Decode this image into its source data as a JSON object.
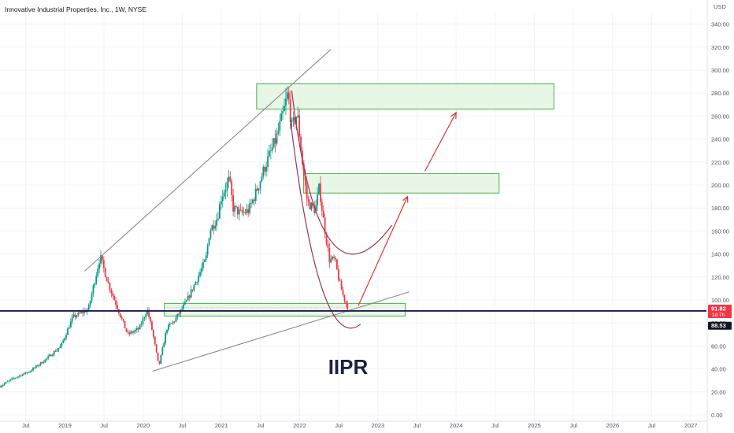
{
  "header": {
    "symbol_line": "Innovative Industrial Properties, Inc., 1W, NYSE"
  },
  "currency": "USD",
  "colors": {
    "up": "#089981",
    "down": "#f23645",
    "zone_fill": "#e3f4e1",
    "zone_stroke": "#4caf50",
    "trendline": "#8a8a8a",
    "curve": "#8e3a54",
    "arrow": "#e0342f",
    "hline": "#1f1c55",
    "grid": "#f0f3fa",
    "axis_text": "#50535e"
  },
  "chart_data": {
    "type": "candlestick",
    "title": "IIPR",
    "ylim": [
      0,
      350
    ],
    "y_ticks": [
      0,
      20,
      40,
      60,
      80,
      100,
      120,
      140,
      160,
      180,
      200,
      220,
      240,
      260,
      280,
      300,
      320,
      340
    ],
    "x_ticks": [
      {
        "label": "Jul",
        "t": 2018.5
      },
      {
        "label": "2019",
        "t": 2019.0
      },
      {
        "label": "Jul",
        "t": 2019.5
      },
      {
        "label": "2020",
        "t": 2020.0
      },
      {
        "label": "Jul",
        "t": 2020.5
      },
      {
        "label": "2021",
        "t": 2021.0
      },
      {
        "label": "Jul",
        "t": 2021.5
      },
      {
        "label": "2022",
        "t": 2022.0
      },
      {
        "label": "Jul",
        "t": 2022.5
      },
      {
        "label": "2023",
        "t": 2023.0
      },
      {
        "label": "Jul",
        "t": 2023.5
      },
      {
        "label": "2024",
        "t": 2024.0
      },
      {
        "label": "Jul",
        "t": 2024.5
      },
      {
        "label": "2025",
        "t": 2025.0
      },
      {
        "label": "Jul",
        "t": 2025.5
      },
      {
        "label": "2026",
        "t": 2026.0
      },
      {
        "label": "Jul",
        "t": 2026.5
      },
      {
        "label": "2027",
        "t": 2027.0
      }
    ],
    "xlim": [
      2018.17,
      2027.2
    ],
    "price_path": [
      [
        2018.17,
        25
      ],
      [
        2018.35,
        32
      ],
      [
        2018.55,
        38
      ],
      [
        2018.75,
        48
      ],
      [
        2018.95,
        60
      ],
      [
        2019.1,
        85
      ],
      [
        2019.3,
        92
      ],
      [
        2019.45,
        138
      ],
      [
        2019.55,
        115
      ],
      [
        2019.7,
        88
      ],
      [
        2019.8,
        70
      ],
      [
        2019.95,
        75
      ],
      [
        2020.05,
        92
      ],
      [
        2020.12,
        72
      ],
      [
        2020.2,
        42
      ],
      [
        2020.3,
        75
      ],
      [
        2020.4,
        82
      ],
      [
        2020.55,
        98
      ],
      [
        2020.7,
        120
      ],
      [
        2020.8,
        135
      ],
      [
        2020.85,
        160
      ],
      [
        2020.95,
        172
      ],
      [
        2021.0,
        190
      ],
      [
        2021.1,
        205
      ],
      [
        2021.15,
        180
      ],
      [
        2021.25,
        175
      ],
      [
        2021.35,
        178
      ],
      [
        2021.45,
        195
      ],
      [
        2021.55,
        215
      ],
      [
        2021.7,
        240
      ],
      [
        2021.8,
        265
      ],
      [
        2021.85,
        280
      ],
      [
        2021.9,
        250
      ],
      [
        2021.97,
        262
      ],
      [
        2022.05,
        210
      ],
      [
        2022.1,
        185
      ],
      [
        2022.2,
        178
      ],
      [
        2022.25,
        198
      ],
      [
        2022.3,
        172
      ],
      [
        2022.38,
        135
      ],
      [
        2022.45,
        135
      ],
      [
        2022.5,
        118
      ],
      [
        2022.55,
        105
      ],
      [
        2022.62,
        91.82
      ]
    ],
    "zones": [
      {
        "t0": 2021.45,
        "t1": 2025.25,
        "y0": 266,
        "y1": 288
      },
      {
        "t0": 2022.05,
        "t1": 2024.55,
        "y0": 193,
        "y1": 210
      },
      {
        "t0": 2020.27,
        "t1": 2023.35,
        "y0": 86,
        "y1": 97
      }
    ],
    "trendlines": [
      {
        "p0": [
          2019.25,
          125
        ],
        "p1": [
          2022.4,
          318
        ]
      },
      {
        "p0": [
          2020.12,
          38
        ],
        "p1": [
          2023.4,
          107
        ]
      }
    ],
    "curves": [
      {
        "p0": [
          2021.9,
          282
        ],
        "c": [
          2022.25,
          80
        ],
        "p1": [
          2023.18,
          165
        ]
      },
      {
        "p0": [
          2021.88,
          258
        ],
        "c": [
          2022.25,
          50
        ],
        "p1": [
          2022.78,
          79
        ]
      }
    ],
    "arrows": [
      {
        "p0": [
          2022.75,
          95
        ],
        "p1": [
          2023.38,
          190
        ]
      },
      {
        "p0": [
          2023.6,
          212
        ],
        "p1": [
          2024.0,
          263
        ]
      }
    ],
    "price_lines": [
      {
        "value": 91.82,
        "label": "91.82",
        "sublabel": "1d 7h",
        "color": "#f23645"
      },
      {
        "value": 88.53,
        "label": "88.53",
        "color": "#131722"
      }
    ],
    "annotation_text": "IIPR"
  }
}
